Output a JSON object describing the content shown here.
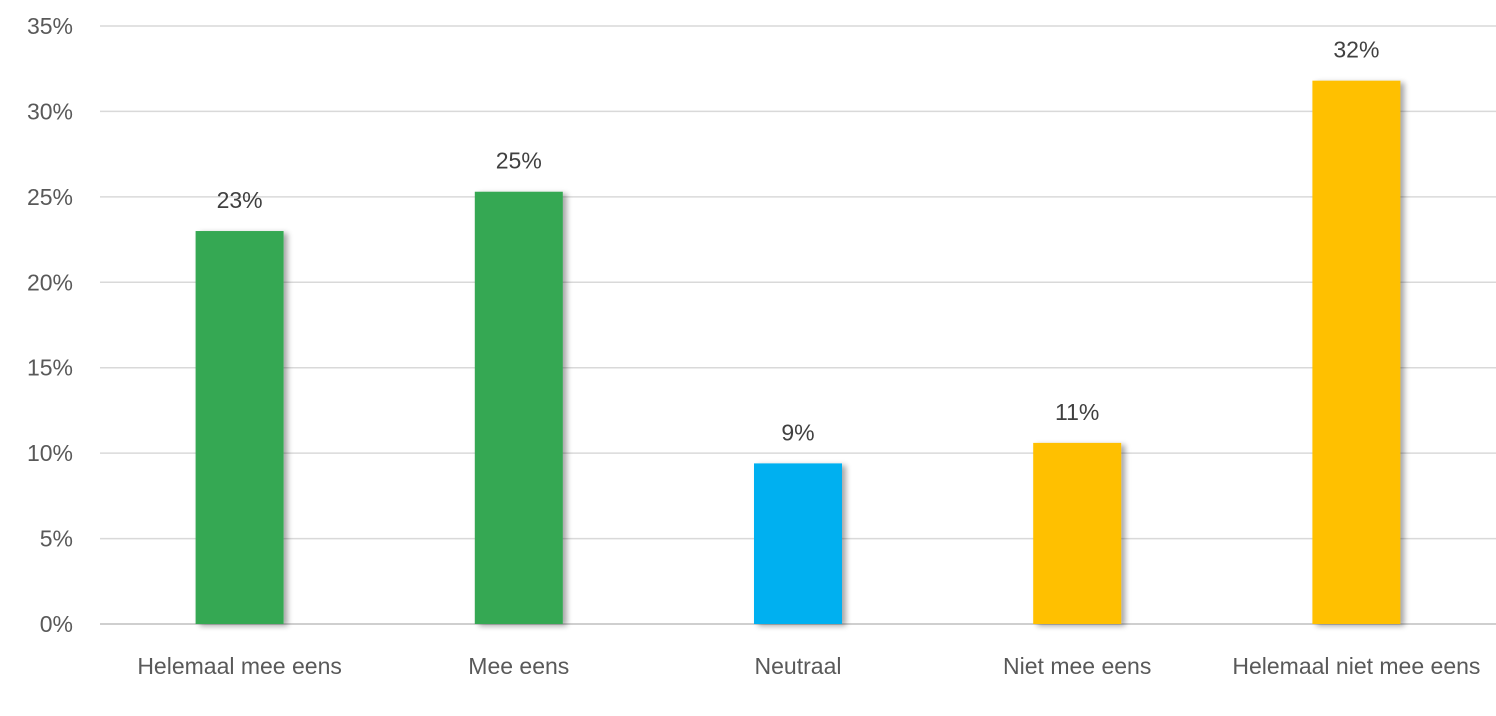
{
  "chart_data": {
    "type": "bar",
    "title": "",
    "xlabel": "",
    "ylabel": "",
    "categories": [
      "Helemaal mee eens",
      "Mee eens",
      "Neutraal",
      "Niet mee eens",
      "Helemaal niet mee eens"
    ],
    "values": [
      0.23,
      0.253,
      0.094,
      0.106,
      0.318
    ],
    "data_labels": [
      "23%",
      "25%",
      "9%",
      "11%",
      "32%"
    ],
    "bar_colors": [
      "#36a852",
      "#36a852",
      "#00b0f0",
      "#ffc000",
      "#ffc000"
    ],
    "ylim": [
      0,
      0.35
    ],
    "yticks": [
      0,
      0.05,
      0.1,
      0.15,
      0.2,
      0.25,
      0.3,
      0.35
    ],
    "ytick_labels": [
      "0%",
      "5%",
      "10%",
      "15%",
      "20%",
      "25%",
      "30%",
      "35%"
    ],
    "grid": true,
    "legend": "none"
  }
}
